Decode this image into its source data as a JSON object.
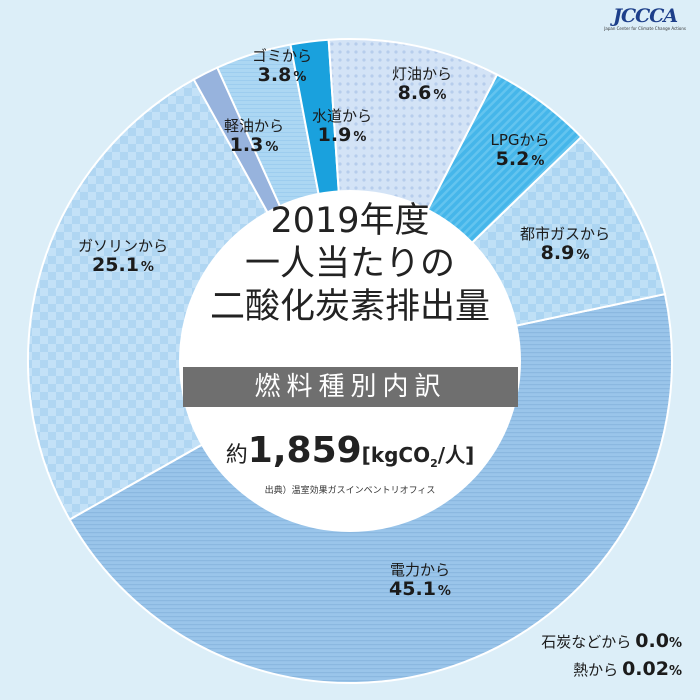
{
  "logo": {
    "mark": "JCCCA",
    "sub": "Japan Center for Climate Change Actions"
  },
  "center": {
    "title_lines": [
      "2019年度",
      "一人当たりの",
      "二酸化炭素排出量"
    ],
    "band": "燃料種別内訳",
    "total_prefix": "約",
    "total_value": "1,859",
    "unit_open": "[kgCO",
    "unit_sub": "2",
    "unit_close": "/人]",
    "source": "出典）温室効果ガスインベントリオフィス"
  },
  "colors": {
    "background": "#dceef8",
    "electricity": "#9ac5ea",
    "gasoline": "#c3e1f7",
    "diesel": "#97b3dd",
    "garbage": "#acd7f3",
    "water": "#1aa1dd",
    "kerosene": "#d3e3f6",
    "lpg": "#45b6ea",
    "citygas": "#bfe0f6",
    "center_band": "#6f6f6f"
  },
  "chart_data": {
    "type": "pie",
    "donut": true,
    "unit": "%",
    "slices": [
      {
        "name": "電力から",
        "value": 45.1,
        "label": "45.1"
      },
      {
        "name": "ガソリンから",
        "value": 25.1,
        "label": "25.1"
      },
      {
        "name": "軽油から",
        "value": 1.3,
        "label": "1.3"
      },
      {
        "name": "ゴミから",
        "value": 3.8,
        "label": "3.8"
      },
      {
        "name": "水道から",
        "value": 1.9,
        "label": "1.9"
      },
      {
        "name": "灯油から",
        "value": 8.6,
        "label": "8.6"
      },
      {
        "name": "LPGから",
        "value": 5.2,
        "label": "5.2"
      },
      {
        "name": "都市ガスから",
        "value": 8.9,
        "label": "8.9"
      }
    ],
    "minor_items": [
      {
        "name": "石炭などから",
        "value": 0.0,
        "label": "0.0"
      },
      {
        "name": "熱から",
        "value": 0.02,
        "label": "0.02"
      }
    ]
  }
}
